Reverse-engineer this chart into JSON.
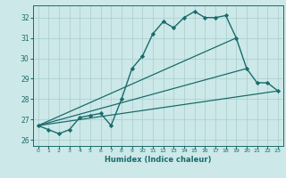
{
  "xlabel": "Humidex (Indice chaleur)",
  "ylabel": "",
  "xlim": [
    -0.5,
    23.5
  ],
  "ylim": [
    25.7,
    32.6
  ],
  "yticks": [
    26,
    27,
    28,
    29,
    30,
    31,
    32
  ],
  "xticks": [
    0,
    1,
    2,
    3,
    4,
    5,
    6,
    7,
    8,
    9,
    10,
    11,
    12,
    13,
    14,
    15,
    16,
    17,
    18,
    19,
    20,
    21,
    22,
    23
  ],
  "background_color": "#cce8e8",
  "grid_color": "#aacccc",
  "line_color": "#1a6b6b",
  "lines": [
    {
      "x": [
        0,
        1,
        2,
        3,
        4,
        5,
        6,
        7,
        8,
        9,
        10,
        11,
        12,
        13,
        14,
        15,
        16,
        17,
        18,
        19,
        20,
        21,
        22,
        23
      ],
      "y": [
        26.7,
        26.5,
        26.3,
        26.5,
        27.1,
        27.2,
        27.3,
        26.7,
        28.0,
        29.5,
        30.1,
        31.2,
        31.8,
        31.5,
        32.0,
        32.3,
        32.0,
        32.0,
        32.1,
        31.0,
        29.5,
        28.8,
        28.8,
        28.4
      ],
      "style": "-",
      "marker": "D",
      "markersize": 2.2,
      "linewidth": 1.0
    },
    {
      "x": [
        0,
        19
      ],
      "y": [
        26.7,
        31.0
      ],
      "style": "-",
      "marker": null,
      "markersize": 0,
      "linewidth": 0.9
    },
    {
      "x": [
        0,
        23
      ],
      "y": [
        26.7,
        28.4
      ],
      "style": "-",
      "marker": null,
      "markersize": 0,
      "linewidth": 0.9
    },
    {
      "x": [
        0,
        20
      ],
      "y": [
        26.7,
        29.5
      ],
      "style": "-",
      "marker": null,
      "markersize": 0,
      "linewidth": 0.9
    }
  ]
}
